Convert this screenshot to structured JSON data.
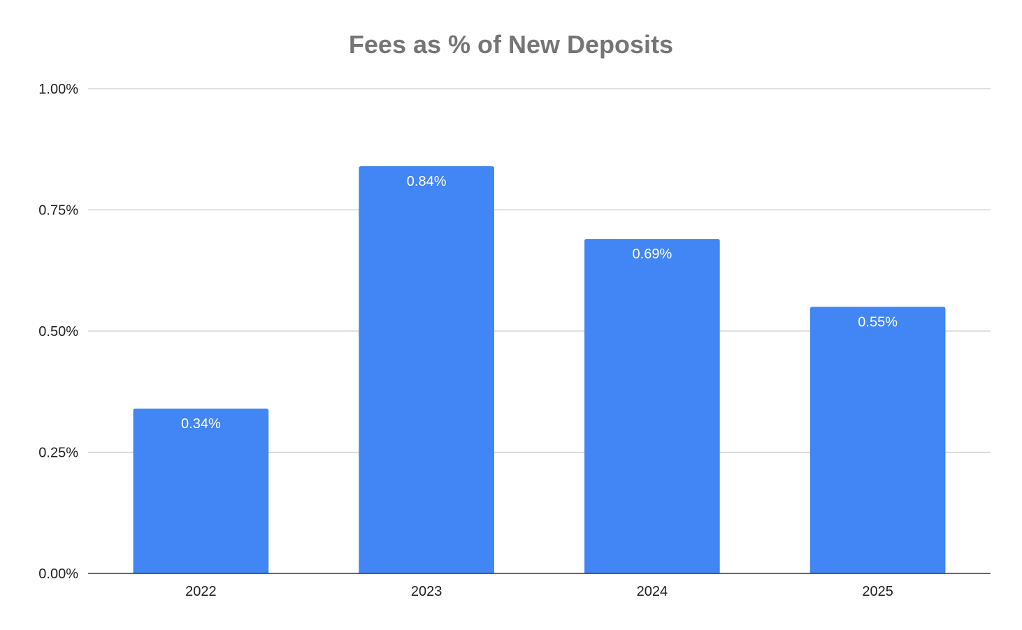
{
  "chart_data": {
    "type": "bar",
    "title": "Fees as % of New Deposits",
    "xlabel": "",
    "ylabel": "",
    "categories": [
      "2022",
      "2023",
      "2024",
      "2025"
    ],
    "values": [
      0.34,
      0.84,
      0.69,
      0.55
    ],
    "data_labels": [
      "0.34%",
      "0.84%",
      "0.69%",
      "0.55%"
    ],
    "ylim": [
      0,
      1.0
    ],
    "yticks": [
      0,
      0.25,
      0.5,
      0.75,
      1.0
    ],
    "ytick_labels": [
      "0.00%",
      "0.25%",
      "0.50%",
      "0.75%",
      "1.00%"
    ],
    "grid": true,
    "legend": "none",
    "colors": {
      "bar": "#4285f4",
      "grid": "#cccccc",
      "axis": "#333333",
      "title": "#757575",
      "text": "#1f1f1f",
      "data_label": "#ffffff"
    }
  }
}
